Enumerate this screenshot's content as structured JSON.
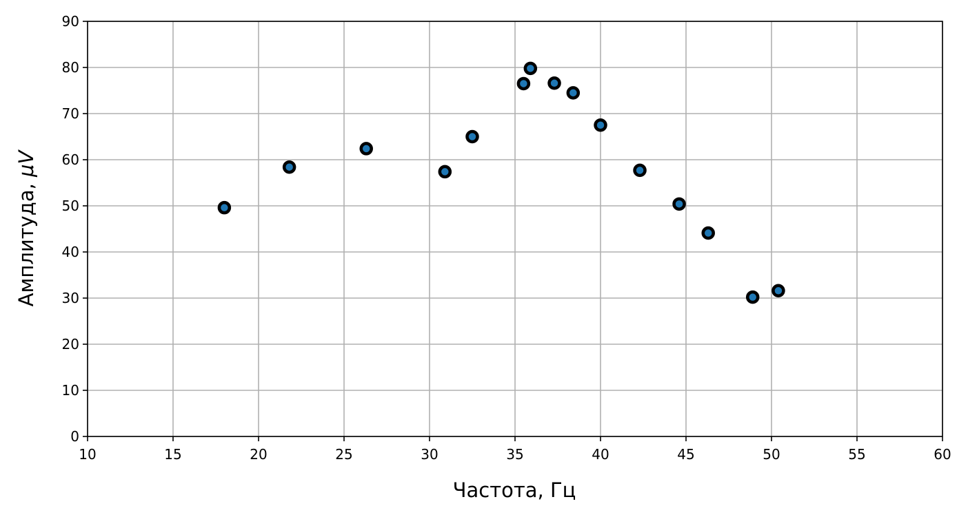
{
  "chart_data": {
    "type": "scatter",
    "title": "",
    "xlabel": "Частота, Гц",
    "ylabel_text": "Амплитуда, ",
    "ylabel_unit": "μV",
    "xlim": [
      10,
      60
    ],
    "ylim": [
      0,
      90
    ],
    "x_ticks": [
      10,
      15,
      20,
      25,
      30,
      35,
      40,
      45,
      50,
      55,
      60
    ],
    "y_ticks": [
      0,
      10,
      20,
      30,
      40,
      50,
      60,
      70,
      80,
      90
    ],
    "grid": true,
    "legend": "none",
    "points": [
      {
        "x": 18.0,
        "y": 49.6
      },
      {
        "x": 21.8,
        "y": 58.4
      },
      {
        "x": 26.3,
        "y": 62.4
      },
      {
        "x": 30.9,
        "y": 57.4
      },
      {
        "x": 32.5,
        "y": 65.0
      },
      {
        "x": 35.5,
        "y": 76.5
      },
      {
        "x": 35.9,
        "y": 79.8
      },
      {
        "x": 37.3,
        "y": 76.6
      },
      {
        "x": 38.4,
        "y": 74.5
      },
      {
        "x": 40.0,
        "y": 67.5
      },
      {
        "x": 42.3,
        "y": 57.7
      },
      {
        "x": 44.6,
        "y": 50.4
      },
      {
        "x": 46.3,
        "y": 44.1
      },
      {
        "x": 48.9,
        "y": 30.2
      },
      {
        "x": 50.4,
        "y": 31.6
      }
    ],
    "colors": {
      "marker_fill": "#1f77b4",
      "marker_edge": "#000000",
      "grid": "#b0b0b0",
      "axes": "#000000"
    }
  }
}
